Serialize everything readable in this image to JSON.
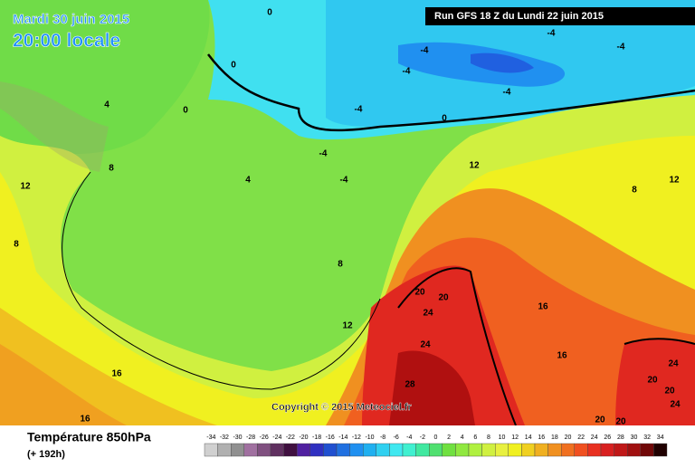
{
  "header": {
    "date": "Mardi 30 juin 2015",
    "time": "20:00 locale",
    "run": "Run GFS 18 Z du Lundi 22 juin 2015"
  },
  "copyright": "Copyright © 2015 Meteociel.fr",
  "legend": {
    "title": "Température 850hPa",
    "lead": "(+ 192h)",
    "scale": [
      -34,
      -32,
      -30,
      -28,
      -26,
      -24,
      -22,
      -20,
      -18,
      -16,
      -14,
      -12,
      -10,
      -8,
      -6,
      -4,
      -2,
      0,
      2,
      4,
      6,
      8,
      10,
      12,
      14,
      16,
      18,
      20,
      22,
      24,
      26,
      28,
      30,
      32,
      34
    ],
    "colors": [
      "#d0d0d0",
      "#b0b0b0",
      "#909090",
      "#a070a0",
      "#805080",
      "#603060",
      "#401040",
      "#5020a0",
      "#3030c0",
      "#2050d0",
      "#2070e0",
      "#2090f0",
      "#20b0f0",
      "#30d0f0",
      "#40e8f0",
      "#40f0d0",
      "#40e8a0",
      "#50e070",
      "#70e040",
      "#90e840",
      "#b0f040",
      "#d0f040",
      "#e8f040",
      "#f0f020",
      "#f0d020",
      "#f0b020",
      "#f09020",
      "#f07020",
      "#f05020",
      "#e83020",
      "#d82020",
      "#c01818",
      "#a01010",
      "#700808",
      "#200000"
    ]
  },
  "contour_labels": [
    0,
    0,
    0,
    4,
    8,
    12,
    8,
    -4,
    -4,
    -4,
    -4,
    -4,
    -4,
    0,
    -4,
    -4,
    4,
    8,
    12,
    8,
    12,
    12,
    16,
    16,
    20,
    20,
    24,
    24,
    16,
    16,
    28,
    20,
    20,
    20,
    20,
    24,
    24
  ]
}
